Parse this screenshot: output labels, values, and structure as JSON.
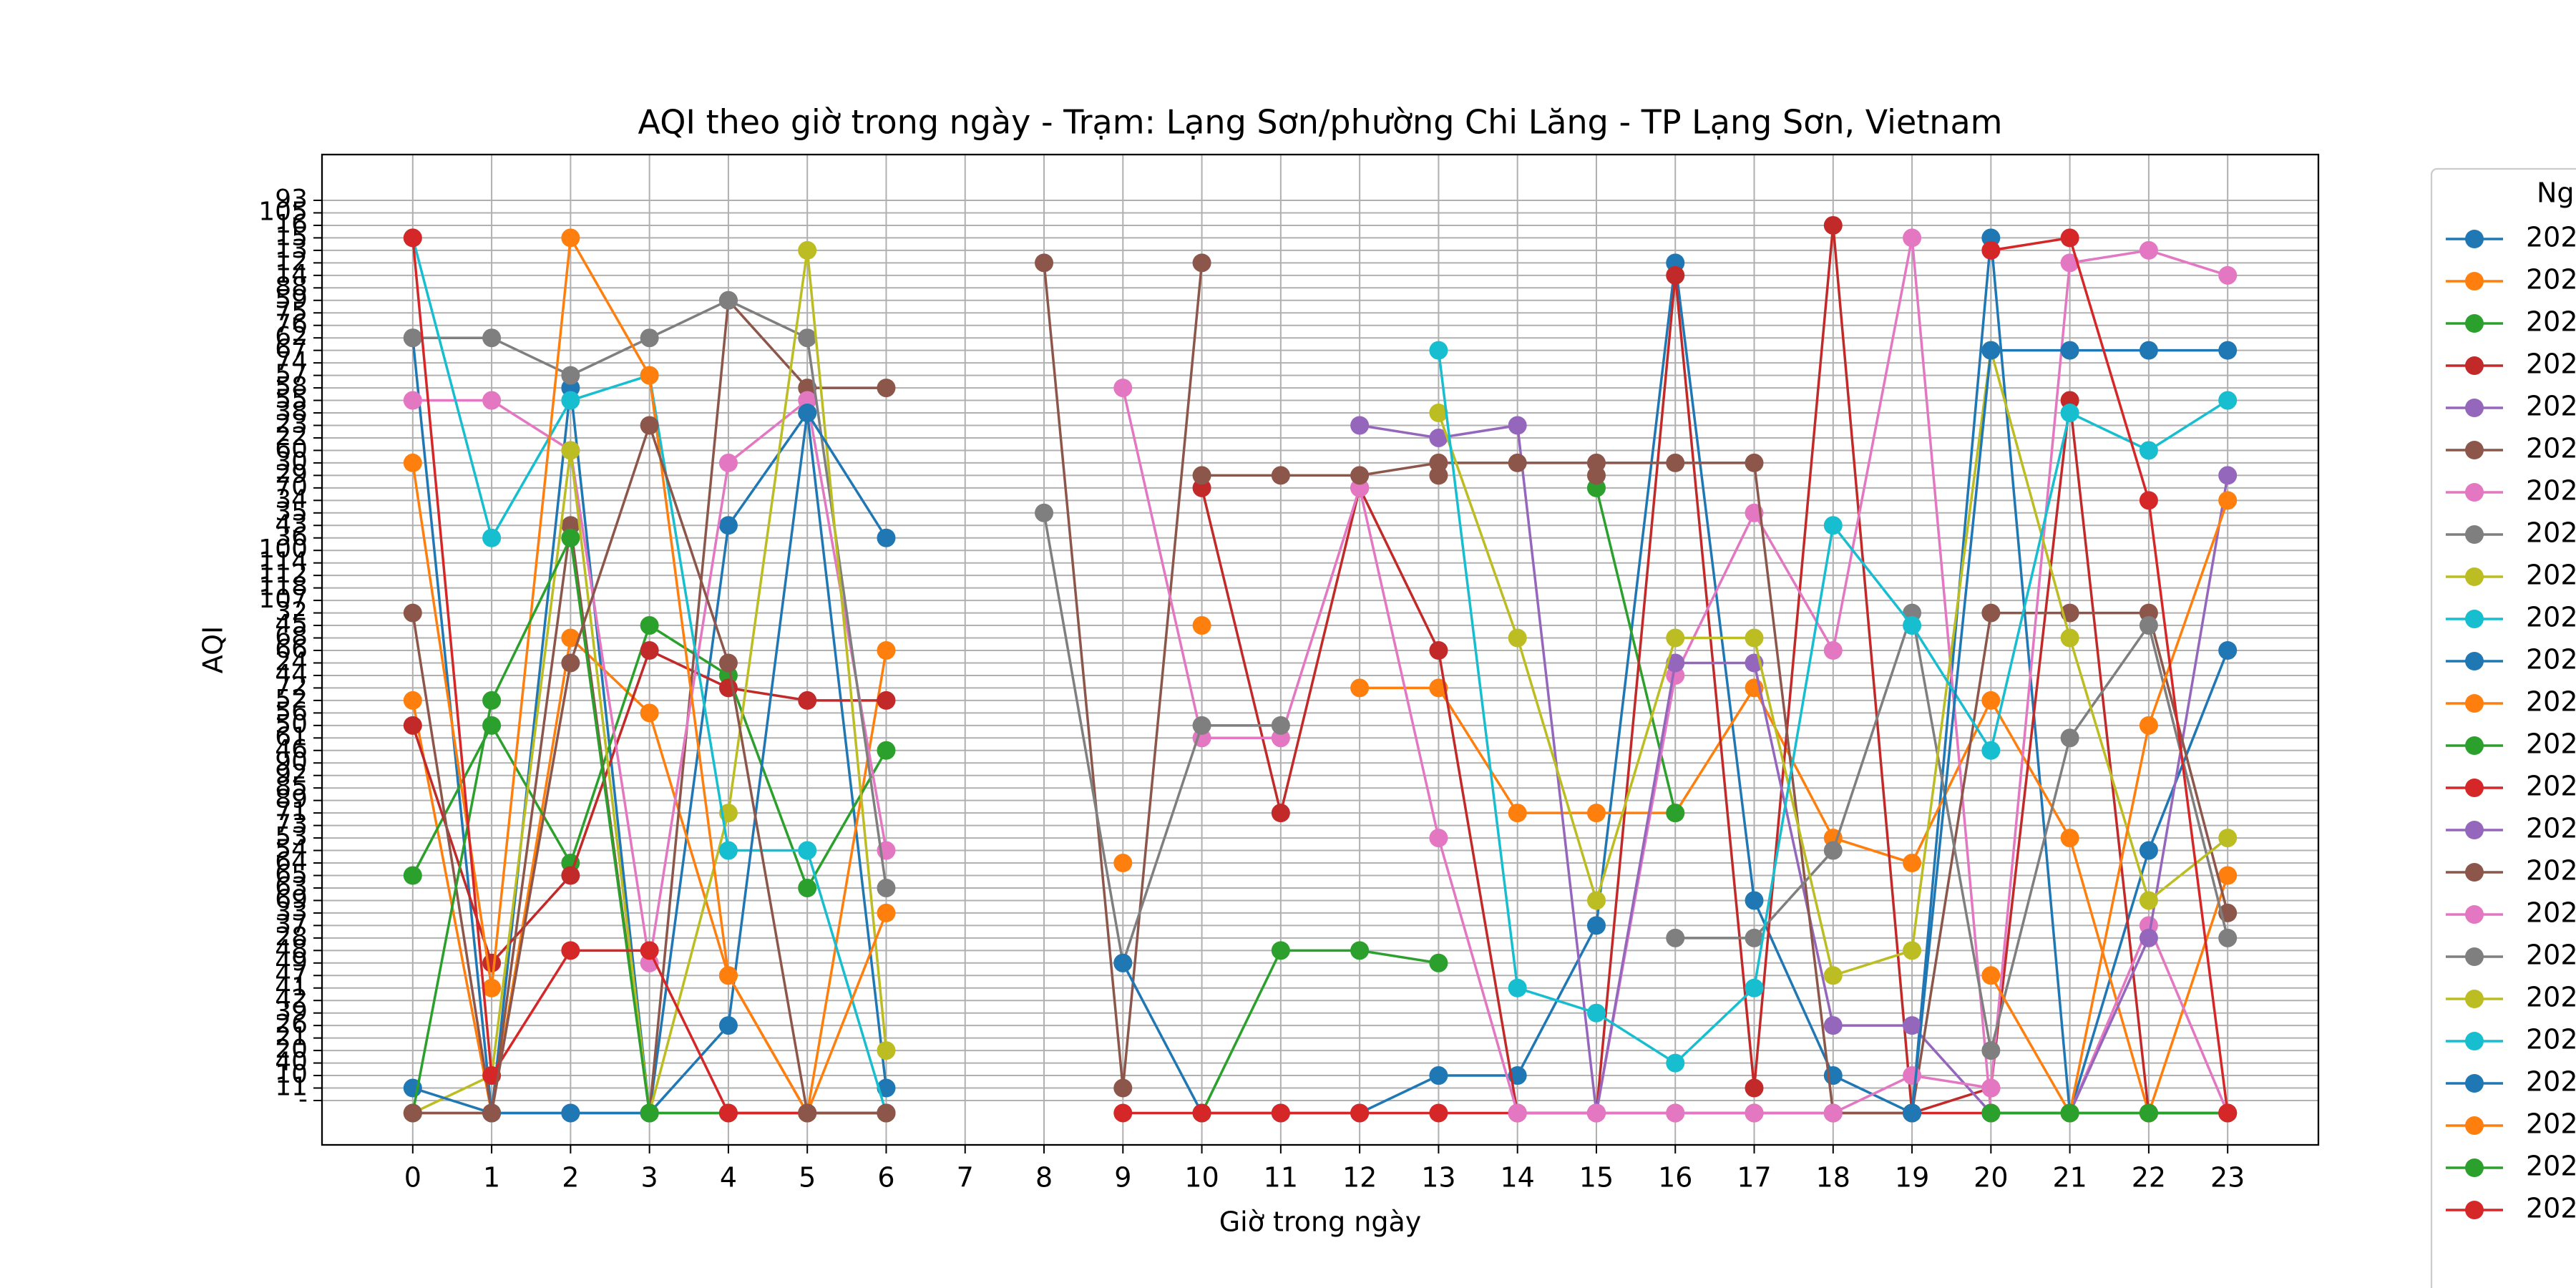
{
  "chart_data": {
    "type": "line",
    "title": "AQI theo giờ trong ngày - Trạm: Lạng Sơn/phường Chi Lăng - TP Lạng Sơn, Vietnam",
    "xlabel": "Giờ trong ngày",
    "ylabel": "AQI",
    "legend_title": "Ng",
    "x": [
      0,
      1,
      2,
      3,
      4,
      5,
      6,
      7,
      8,
      9,
      10,
      11,
      12,
      13,
      14,
      15,
      16,
      17,
      18,
      19,
      20,
      21,
      22,
      23
    ],
    "xlim": [
      -1.15,
      24.15
    ],
    "xticks": [
      0,
      1,
      2,
      3,
      4,
      5,
      6,
      7,
      8,
      9,
      10,
      11,
      12,
      13,
      14,
      15,
      16,
      17,
      18,
      19,
      20,
      21,
      22,
      23
    ],
    "ycategories": [
      "-",
      "11",
      "10",
      "40",
      "20",
      "21",
      "26",
      "39",
      "42",
      "41",
      "47",
      "49",
      "48",
      "28",
      "37",
      "33",
      "69",
      "63",
      "65",
      "64",
      "54",
      "53",
      "73",
      "71",
      "89",
      "85",
      "92",
      "90",
      "46",
      "61",
      "50",
      "56",
      "52",
      "72",
      "44",
      "24",
      "66",
      "68",
      "45",
      "32",
      "107",
      "118",
      "112",
      "114",
      "100",
      "36",
      "43",
      "35",
      "34",
      "70",
      "29",
      "30",
      "60",
      "22",
      "23",
      "38",
      "55",
      "58",
      "57",
      "74",
      "67",
      "62",
      "76",
      "75",
      "59",
      "88",
      "14",
      "12",
      "13",
      "15",
      "16",
      "105",
      "93"
    ],
    "grid": true,
    "series": [
      {
        "name": "202",
        "color": "#1f77b4",
        "values": [
          "62",
          "19",
          "58",
          "17",
          "43",
          "38",
          "11",
          null,
          null,
          null,
          null,
          null,
          "8",
          "10",
          "10",
          "37",
          "12",
          "69",
          "10",
          "2",
          "15",
          "31",
          "54",
          "66"
        ]
      },
      {
        "name": "202",
        "color": "#ff7f0e",
        "values": [
          "52",
          "31",
          "68",
          "56",
          "47",
          "4",
          "66",
          null,
          null,
          "64",
          null,
          null,
          "72",
          "72",
          "71",
          "71",
          "71",
          "72",
          "53",
          "64",
          "52",
          "53",
          "51",
          "65"
        ]
      },
      {
        "name": "202",
        "color": "#2ca02c",
        "values": [
          "65",
          "50",
          "64",
          "45",
          "44",
          "63",
          "46",
          null,
          null,
          null,
          "8",
          "48",
          "48",
          "49",
          null,
          "70",
          "71",
          null,
          null,
          null,
          null,
          null,
          null,
          null
        ]
      },
      {
        "name": "202",
        "color": "#c22a2a",
        "values": [
          "50",
          "49",
          "65",
          "66",
          "72",
          "52",
          "52",
          null,
          null,
          null,
          "70",
          "71",
          "70",
          "66",
          "51",
          "5",
          "14",
          "11",
          "16",
          "1",
          "11",
          "55",
          "0",
          "0"
        ]
      },
      {
        "name": "202",
        "color": "#9467bd",
        "values": [
          "0",
          "0",
          "0",
          "0",
          "0",
          "0",
          "0",
          null,
          null,
          null,
          null,
          "0",
          "0",
          null,
          null,
          null,
          null,
          null,
          null,
          null,
          null,
          null,
          null,
          null
        ]
      },
      {
        "name": "202",
        "color": "#8c564b",
        "values": [
          "32",
          "27",
          "43",
          "25",
          "59",
          "58",
          "58",
          null,
          "12",
          "11",
          "12",
          null,
          null,
          "29",
          null,
          "29",
          null,
          null,
          null,
          null,
          null,
          null,
          null,
          null
        ]
      },
      {
        "name": "202",
        "color": "#e377c2",
        "values": [
          "55",
          "55",
          "60",
          "49",
          "30",
          "55",
          "54",
          null,
          null,
          "58",
          "61",
          "61",
          "70",
          "53",
          "6",
          "3",
          "44",
          "35",
          "66",
          "15",
          "25",
          "8",
          "37",
          "3"
        ]
      },
      {
        "name": "202",
        "color": "#7f7f7f",
        "values": [
          "62",
          "62",
          "57",
          "62",
          "59",
          "62",
          "63",
          null,
          "35",
          "49",
          "50",
          "50",
          null,
          null,
          null,
          null,
          null,
          null,
          null,
          null,
          null,
          null,
          null,
          null
        ]
      },
      {
        "name": "202",
        "color": "#bcbd22",
        "values": [
          "27",
          "10",
          "60",
          "1",
          "71",
          "13",
          "20",
          null,
          null,
          null,
          null,
          null,
          null,
          null,
          null,
          null,
          null,
          null,
          null,
          null,
          null,
          null,
          null,
          null
        ]
      },
      {
        "name": "202",
        "color": "#17becf",
        "values": [
          "15",
          "36",
          "55",
          "57",
          "54",
          "54",
          "9",
          null,
          null,
          null,
          null,
          null,
          null,
          null,
          null,
          null,
          null,
          null,
          null,
          null,
          null,
          null,
          null,
          null
        ]
      },
      {
        "name": "202",
        "color": "#1f77b4",
        "values": [
          "11",
          "2",
          "4",
          "18",
          "26",
          "38",
          "36",
          null,
          null,
          "49",
          "51",
          "51",
          null,
          null,
          null,
          null,
          null,
          null,
          null,
          null,
          null,
          null,
          null,
          null
        ]
      },
      {
        "name": "202",
        "color": "#ff7f0e",
        "values": [
          "30",
          "41",
          "15",
          "57",
          "47",
          "4",
          "33",
          null,
          null,
          null,
          "45",
          null,
          null,
          null,
          null,
          null,
          null,
          null,
          null,
          null,
          null,
          null,
          null,
          null
        ]
      },
      {
        "name": "202",
        "color": "#2ca02c",
        "values": [
          "3",
          "52",
          "36",
          "2",
          "1",
          "1",
          "2",
          null,
          null,
          null,
          "5",
          null,
          null,
          null,
          null,
          null,
          null,
          null,
          null,
          null,
          null,
          null,
          null,
          null
        ]
      },
      {
        "name": "202",
        "color": "#d62728",
        "values": [
          "15",
          "10",
          "48",
          "48",
          "51",
          "51",
          "51",
          null,
          null,
          "0",
          "0",
          "0",
          "0",
          "0",
          "0",
          "0",
          "0",
          "0",
          "0",
          "0",
          "0",
          "0",
          "0",
          "0"
        ]
      },
      {
        "name": "202",
        "color": "#9467bd",
        "values": [
          null,
          null,
          null,
          null,
          null,
          null,
          null,
          null,
          null,
          null,
          null,
          null,
          "23",
          "22",
          "23",
          "25",
          "24",
          "24",
          "26",
          "26",
          "27",
          "27",
          "28",
          "29"
        ]
      },
      {
        "name": "202",
        "color": "#8c564b",
        "values": [
          "27",
          "25",
          "24",
          "23",
          "24",
          "27",
          "27",
          null,
          null,
          null,
          "29",
          "29",
          "29",
          "30",
          "30",
          "30",
          "30",
          "30",
          "31",
          "31",
          "32",
          "32",
          "32",
          "33"
        ]
      },
      {
        "name": "202",
        "color": "#e377c2",
        "values": [
          null,
          null,
          null,
          null,
          null,
          null,
          null,
          null,
          null,
          null,
          null,
          null,
          null,
          null,
          "3",
          "4",
          "5",
          "7",
          "9",
          "10",
          "11",
          "12",
          "13",
          "14"
        ]
      },
      {
        "name": "202",
        "color": "#7f7f7f",
        "values": [
          null,
          null,
          null,
          null,
          null,
          null,
          null,
          null,
          null,
          null,
          null,
          null,
          null,
          null,
          null,
          null,
          "28",
          "28",
          "54",
          "32",
          "20",
          "61",
          "45",
          "28"
        ]
      },
      {
        "name": "202",
        "color": "#bcbd22",
        "values": [
          null,
          null,
          null,
          null,
          null,
          null,
          null,
          null,
          null,
          null,
          null,
          null,
          null,
          "38",
          "68",
          "69",
          "68",
          "68",
          "47",
          "48",
          "67",
          "68",
          "69",
          "53"
        ]
      },
      {
        "name": "202",
        "color": "#17becf",
        "values": [
          null,
          null,
          null,
          null,
          null,
          null,
          null,
          null,
          null,
          null,
          null,
          null,
          null,
          "67",
          "41",
          "39",
          "40",
          "41",
          "43",
          "45",
          "46",
          "38",
          "60",
          "55"
        ]
      },
      {
        "name": "202",
        "color": "#1f77b4",
        "values": [
          null,
          null,
          null,
          null,
          null,
          null,
          null,
          null,
          null,
          null,
          null,
          null,
          null,
          null,
          null,
          null,
          null,
          null,
          null,
          "0",
          "67",
          "67",
          "67",
          "67"
        ]
      },
      {
        "name": "202",
        "color": "#ff7f0e",
        "values": [
          null,
          null,
          null,
          null,
          null,
          null,
          null,
          null,
          null,
          null,
          null,
          null,
          null,
          null,
          null,
          null,
          null,
          null,
          null,
          null,
          "47",
          "51",
          "50",
          "34"
        ]
      },
      {
        "name": "202",
        "color": "#2ca02c",
        "values": [
          null,
          null,
          null,
          null,
          null,
          null,
          null,
          null,
          null,
          null,
          null,
          null,
          null,
          null,
          null,
          null,
          null,
          null,
          null,
          null,
          "4",
          "4",
          "3",
          "8"
        ]
      },
      {
        "name": "202",
        "color": "#d62728",
        "values": [
          null,
          null,
          null,
          null,
          null,
          null,
          null,
          null,
          null,
          null,
          null,
          null,
          null,
          null,
          null,
          null,
          null,
          null,
          null,
          null,
          "13",
          "15",
          "34",
          "18"
        ]
      }
    ]
  }
}
